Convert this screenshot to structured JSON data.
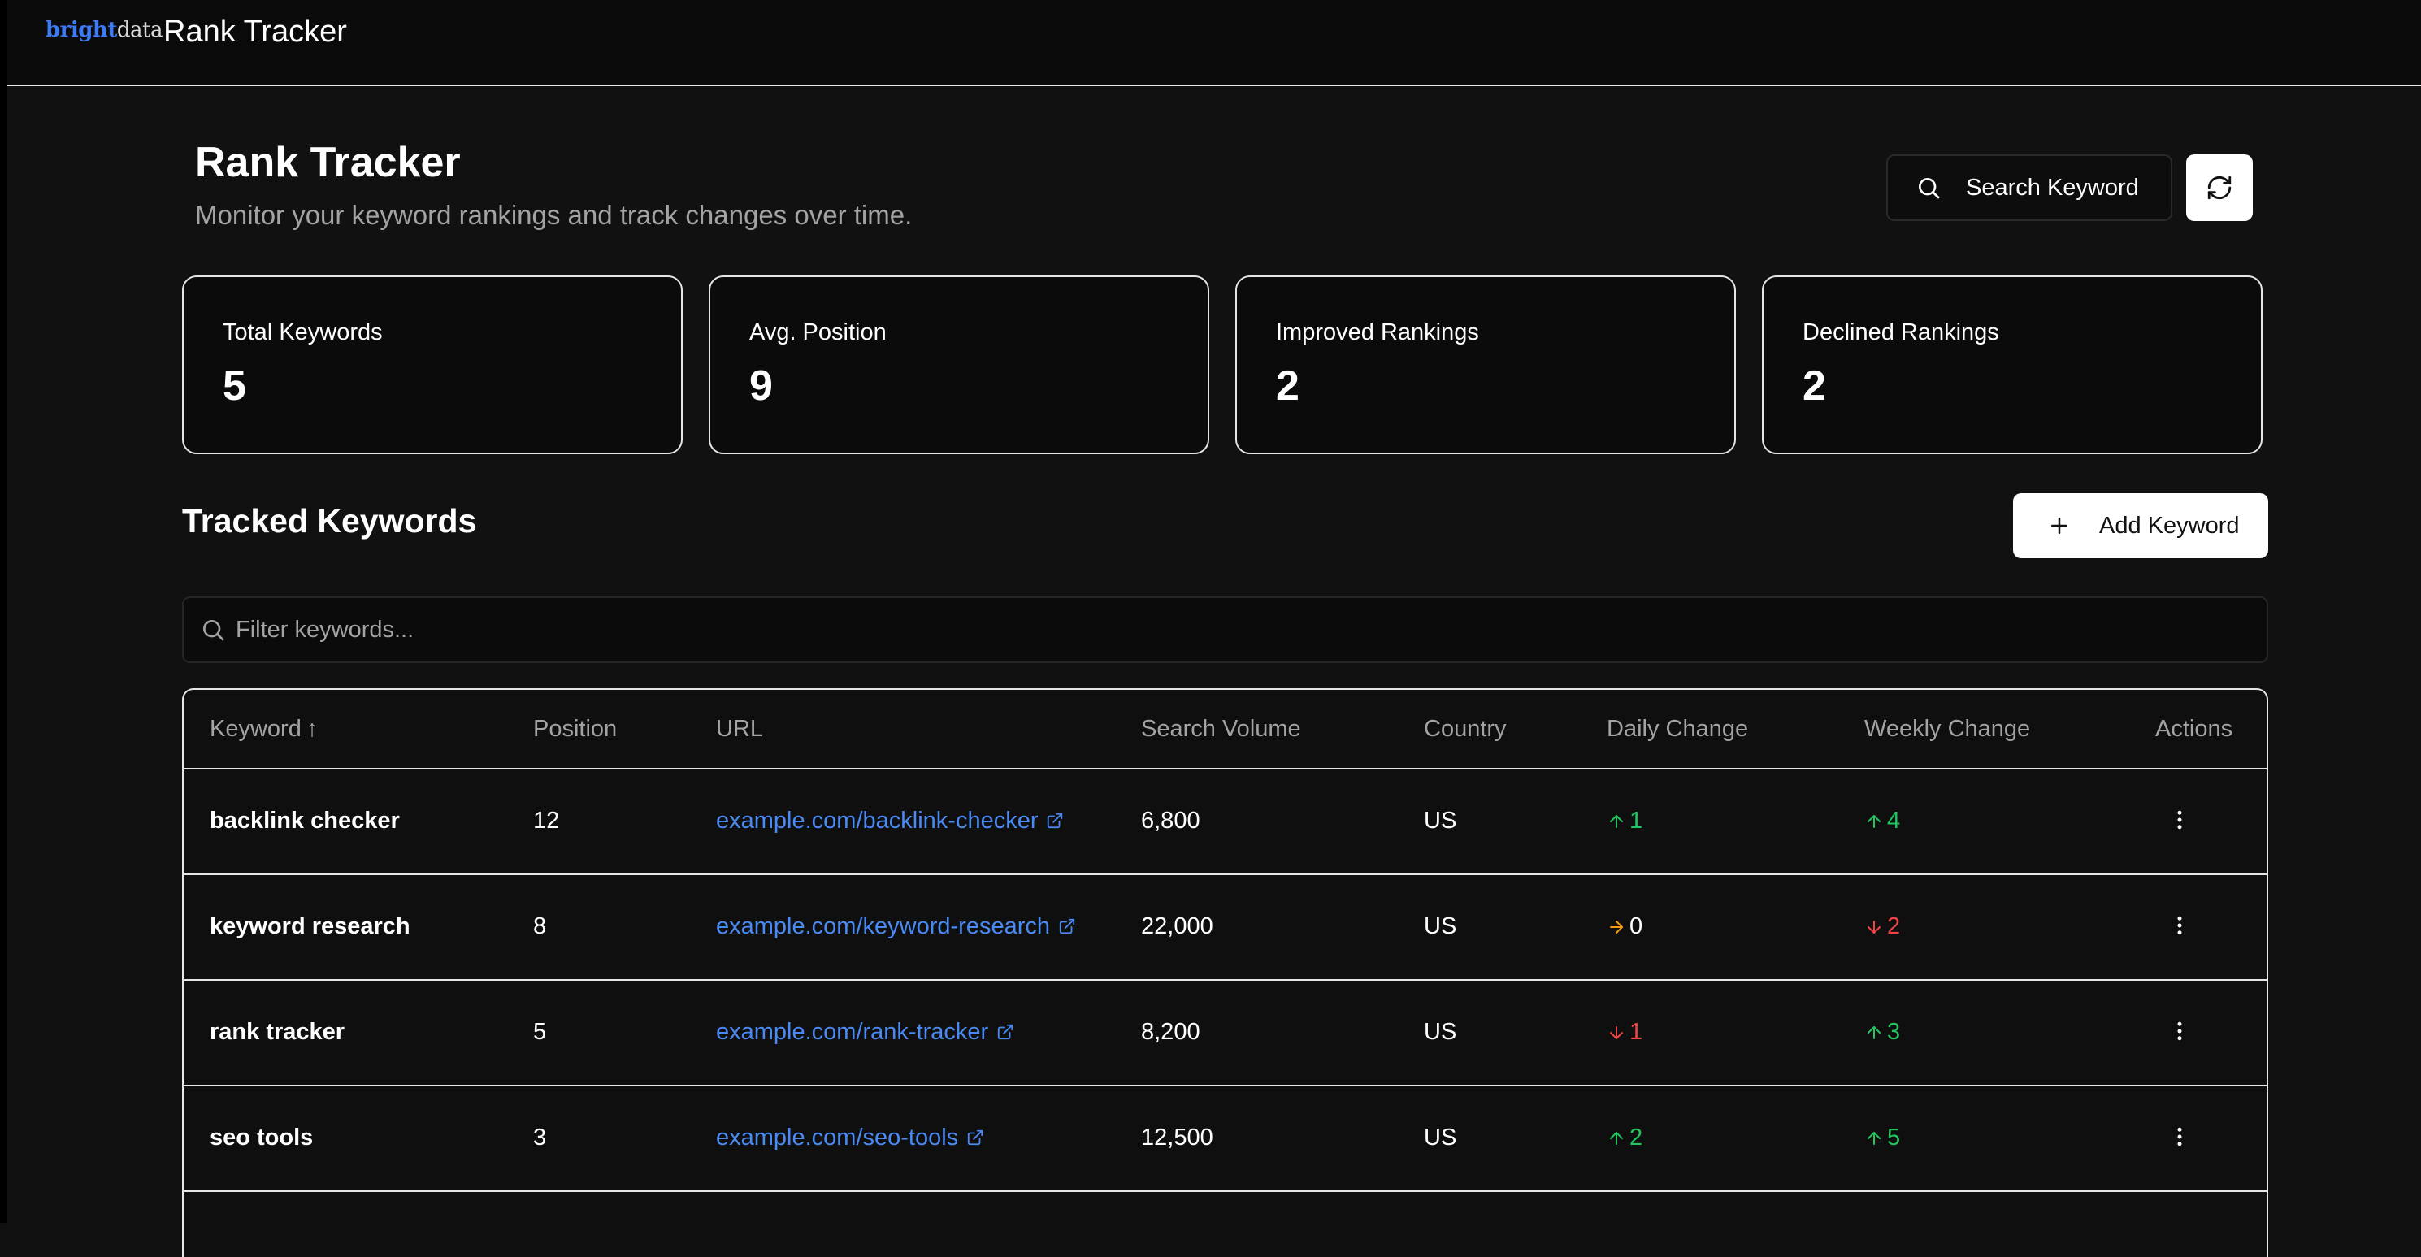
{
  "app": {
    "brand_part1": "bright",
    "brand_part2": "data",
    "title": "Rank Tracker"
  },
  "header": {
    "title": "Rank Tracker",
    "subtitle": "Monitor your keyword rankings and track changes over time.",
    "search_button_label": "Search Keyword"
  },
  "stats": [
    {
      "label": "Total Keywords",
      "value": "5"
    },
    {
      "label": "Avg. Position",
      "value": "9"
    },
    {
      "label": "Improved Rankings",
      "value": "2"
    },
    {
      "label": "Declined Rankings",
      "value": "2"
    }
  ],
  "section": {
    "title": "Tracked Keywords",
    "add_button_label": "Add Keyword",
    "filter_placeholder": "Filter keywords..."
  },
  "table": {
    "columns": [
      "Keyword",
      "Position",
      "URL",
      "Search Volume",
      "Country",
      "Daily Change",
      "Weekly Change",
      "Actions"
    ],
    "sort_indicator": "↑",
    "rows": [
      {
        "keyword": "backlink checker",
        "position": "12",
        "url": "example.com/backlink-checker",
        "volume": "6,800",
        "country": "US",
        "daily": "1",
        "weekly": "4"
      },
      {
        "keyword": "keyword research",
        "position": "8",
        "url": "example.com/keyword-research",
        "volume": "22,000",
        "country": "US",
        "daily": "0",
        "weekly": "2"
      },
      {
        "keyword": "rank tracker",
        "position": "5",
        "url": "example.com/rank-tracker",
        "volume": "8,200",
        "country": "US",
        "daily": "1",
        "weekly": "3"
      },
      {
        "keyword": "seo tools",
        "position": "3",
        "url": "example.com/seo-tools",
        "volume": "12,500",
        "country": "US",
        "daily": "2",
        "weekly": "5"
      }
    ]
  },
  "colors": {
    "up": "#22c55e",
    "down": "#ef4444",
    "flat_arrow": "#f59e0b",
    "link": "#4a8af4",
    "brand": "#3d7bf5"
  },
  "icons": {
    "search": "search-icon",
    "refresh": "refresh-icon",
    "plus": "plus-icon",
    "external_link": "external-link-icon",
    "more_vertical": "more-vertical-icon",
    "arrow_up": "arrow-up-icon",
    "arrow_down": "arrow-down-icon",
    "arrow_right": "arrow-right-icon"
  }
}
